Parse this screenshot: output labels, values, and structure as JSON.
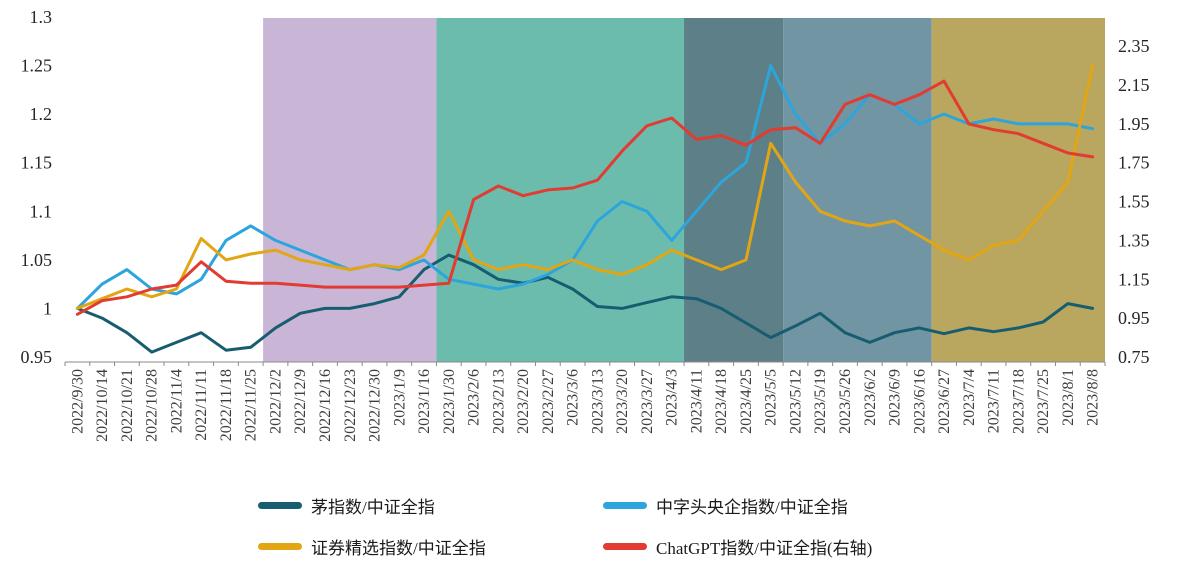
{
  "chart_data": {
    "type": "line",
    "title": "",
    "grid": false,
    "legend_position": "bottom",
    "x": [
      "2022/9/30",
      "2022/10/14",
      "2022/10/21",
      "2022/10/28",
      "2022/11/4",
      "2022/11/11",
      "2022/11/18",
      "2022/11/25",
      "2022/12/2",
      "2022/12/9",
      "2022/12/16",
      "2022/12/23",
      "2022/12/30",
      "2023/1/9",
      "2023/1/16",
      "2023/1/30",
      "2023/2/6",
      "2023/2/13",
      "2023/2/20",
      "2023/2/27",
      "2023/3/6",
      "2023/3/13",
      "2023/3/20",
      "2023/3/27",
      "2023/4/3",
      "2023/4/11",
      "2023/4/18",
      "2023/4/25",
      "2023/5/5",
      "2023/5/12",
      "2023/5/19",
      "2023/5/26",
      "2023/6/2",
      "2023/6/9",
      "2023/6/16",
      "2023/6/27",
      "2023/7/4",
      "2023/7/11",
      "2023/7/18",
      "2023/7/25",
      "2023/8/1",
      "2023/8/8"
    ],
    "series": [
      {
        "id": "mao-index",
        "name": "茅指数/中证全指",
        "axis": "left",
        "color": "#175d70",
        "values": [
          1.0,
          0.99,
          0.975,
          0.955,
          0.965,
          0.975,
          0.957,
          0.96,
          0.98,
          0.995,
          1.0,
          1.0,
          1.005,
          1.012,
          1.04,
          1.055,
          1.045,
          1.03,
          1.026,
          1.032,
          1.02,
          1.002,
          1.0,
          1.006,
          1.012,
          1.01,
          1.0,
          0.985,
          0.97,
          0.982,
          0.995,
          0.975,
          0.965,
          0.975,
          0.98,
          0.974,
          0.98,
          0.976,
          0.98,
          0.986,
          1.005,
          1.0
        ]
      },
      {
        "id": "central-soe-index",
        "name": "中字头央企指数/中证全指",
        "axis": "left",
        "color": "#2ca5dc",
        "values": [
          1.0,
          1.025,
          1.04,
          1.02,
          1.015,
          1.03,
          1.07,
          1.085,
          1.07,
          1.06,
          1.05,
          1.04,
          1.045,
          1.04,
          1.05,
          1.03,
          1.025,
          1.02,
          1.025,
          1.035,
          1.05,
          1.09,
          1.11,
          1.1,
          1.07,
          1.1,
          1.13,
          1.15,
          1.25,
          1.2,
          1.17,
          1.19,
          1.22,
          1.21,
          1.19,
          1.2,
          1.19,
          1.195,
          1.19,
          1.19,
          1.19,
          1.185
        ]
      },
      {
        "id": "securities-select-index",
        "name": "证券精选指数/中证全指",
        "axis": "left",
        "color": "#e2a513",
        "values": [
          1.0,
          1.01,
          1.02,
          1.012,
          1.02,
          1.072,
          1.05,
          1.056,
          1.06,
          1.05,
          1.045,
          1.04,
          1.045,
          1.042,
          1.055,
          1.1,
          1.05,
          1.04,
          1.045,
          1.04,
          1.05,
          1.04,
          1.035,
          1.045,
          1.06,
          1.05,
          1.04,
          1.05,
          1.17,
          1.13,
          1.1,
          1.09,
          1.085,
          1.09,
          1.075,
          1.06,
          1.05,
          1.065,
          1.07,
          1.1,
          1.13,
          1.25
        ]
      },
      {
        "id": "chatgpt-index",
        "name": "ChatGPT指数/中证全指(右轴)",
        "axis": "right",
        "color": "#e03c31",
        "values": [
          0.97,
          1.04,
          1.06,
          1.1,
          1.12,
          1.24,
          1.14,
          1.13,
          1.13,
          1.12,
          1.11,
          1.11,
          1.11,
          1.11,
          1.12,
          1.13,
          1.56,
          1.63,
          1.58,
          1.61,
          1.62,
          1.66,
          1.81,
          1.94,
          1.98,
          1.87,
          1.89,
          1.84,
          1.92,
          1.93,
          1.85,
          2.05,
          2.1,
          2.05,
          2.1,
          2.17,
          1.95,
          1.92,
          1.9,
          1.85,
          1.8,
          1.78
        ]
      }
    ],
    "left_axis": {
      "min": 0.95,
      "max": 1.3,
      "ticks": [
        "0.95",
        "1",
        "1.05",
        "1.1",
        "1.15",
        "1.2",
        "1.25",
        "1.3"
      ]
    },
    "right_axis": {
      "min": 0.75,
      "max": 2.5,
      "ticks": [
        "0.75",
        "0.95",
        "1.15",
        "1.35",
        "1.55",
        "1.75",
        "1.95",
        "2.15",
        "2.35"
      ]
    },
    "bands": [
      {
        "from": "2022/12/2",
        "to": "2023/1/16",
        "color": "#c9b6d7"
      },
      {
        "from": "2023/1/30",
        "to": "2023/4/3",
        "color": "#6cbcae"
      },
      {
        "from": "2023/4/11",
        "to": "2023/5/5",
        "color": "#5d7f87"
      },
      {
        "from": "2023/5/12",
        "to": "2023/6/16",
        "color": "#7295a4"
      },
      {
        "from": "2023/6/27",
        "to": "2023/8/8",
        "color": "#b9a65f"
      }
    ]
  }
}
